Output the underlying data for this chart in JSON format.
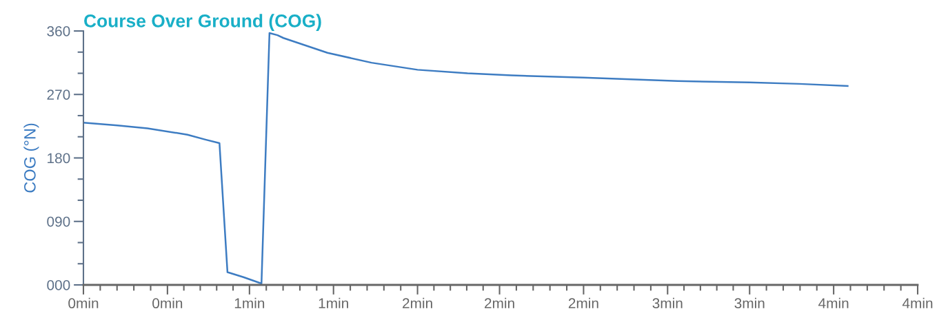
{
  "chart_data": {
    "type": "line",
    "title": "Course Over Ground (COG)",
    "ylabel": "COG (°N)",
    "x": [
      0,
      0.17,
      0.32,
      0.52,
      0.61,
      0.68,
      0.72,
      0.8,
      0.89,
      0.93,
      0.97,
      1.0,
      1.22,
      1.44,
      1.67,
      1.92,
      2.14,
      2.5,
      2.97,
      3.33,
      3.58,
      3.82
    ],
    "series": [
      {
        "color": "#3d7cc2",
        "values": [
          230,
          226,
          222,
          213,
          206,
          201,
          18,
          11,
          2,
          357,
          354,
          350,
          329,
          315,
          305,
          300,
          297,
          294,
          289,
          287,
          285,
          282
        ]
      }
    ],
    "xlim": [
      0,
      4.17
    ],
    "xticks": [
      {
        "value": 0,
        "label": "0min"
      },
      {
        "value": 0.42,
        "label": "0min"
      },
      {
        "value": 0.83,
        "label": "1min"
      },
      {
        "value": 1.25,
        "label": "1min"
      },
      {
        "value": 1.67,
        "label": "2min"
      },
      {
        "value": 2.08,
        "label": "2min"
      },
      {
        "value": 2.5,
        "label": "2min"
      },
      {
        "value": 2.92,
        "label": "3min"
      },
      {
        "value": 3.33,
        "label": "3min"
      },
      {
        "value": 3.75,
        "label": "4min"
      },
      {
        "value": 4.17,
        "label": "4min"
      }
    ],
    "ylim": [
      0,
      360
    ],
    "yticks": [
      {
        "value": 0,
        "label": "000"
      },
      {
        "value": 30,
        "label": null
      },
      {
        "value": 60,
        "label": null
      },
      {
        "value": 90,
        "label": "090"
      },
      {
        "value": 120,
        "label": null
      },
      {
        "value": 150,
        "label": null
      },
      {
        "value": 180,
        "label": "180"
      },
      {
        "value": 210,
        "label": null
      },
      {
        "value": 240,
        "label": null
      },
      {
        "value": 270,
        "label": "270"
      },
      {
        "value": 300,
        "label": null
      },
      {
        "value": 330,
        "label": null
      },
      {
        "value": 360,
        "label": "360"
      }
    ],
    "grid": false,
    "legend": false,
    "marker": "none",
    "line_style": "solid"
  }
}
